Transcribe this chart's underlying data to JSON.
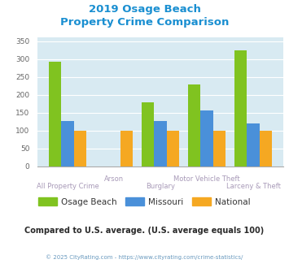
{
  "title_line1": "2019 Osage Beach",
  "title_line2": "Property Crime Comparison",
  "categories": [
    "All Property Crime",
    "Arson",
    "Burglary",
    "Motor Vehicle Theft",
    "Larceny & Theft"
  ],
  "osage_beach": [
    293,
    0,
    178,
    228,
    325
  ],
  "missouri": [
    126,
    0,
    127,
    155,
    120
  ],
  "national": [
    100,
    100,
    100,
    100,
    100
  ],
  "color_osage": "#80c320",
  "color_missouri": "#4a90d9",
  "color_national": "#f5a822",
  "ylim": [
    0,
    360
  ],
  "yticks": [
    0,
    50,
    100,
    150,
    200,
    250,
    300,
    350
  ],
  "bg_color": "#d8eaf2",
  "title_color": "#1a8fd1",
  "xlabel_color": "#a89ab8",
  "legend_label_osage": "Osage Beach",
  "legend_label_missouri": "Missouri",
  "legend_label_national": "National",
  "note_text": "Compared to U.S. average. (U.S. average equals 100)",
  "note_color": "#2a2a2a",
  "footer_text": "© 2025 CityRating.com - https://www.cityrating.com/crime-statistics/",
  "footer_color": "#6a9abf",
  "fig_width": 3.55,
  "fig_height": 3.3
}
